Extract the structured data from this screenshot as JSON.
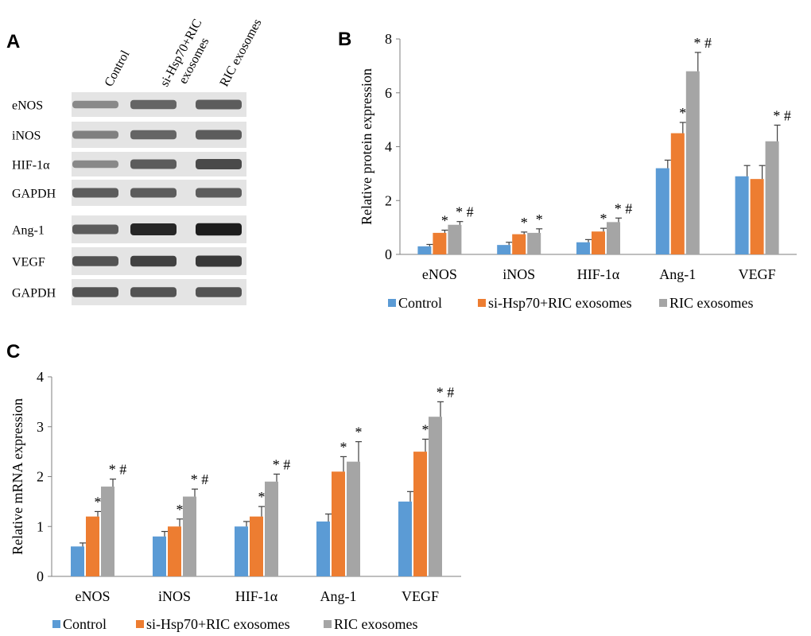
{
  "colors": {
    "control": "#5b9bd5",
    "si": "#ed7d31",
    "ric": "#a5a5a5",
    "axis": "#7f7f7f",
    "error": "#404040"
  },
  "panels": {
    "a": "A",
    "b": "B",
    "c": "C"
  },
  "blot": {
    "lanes": [
      "Control",
      "si-Hsp70+RIC\nexosomes",
      "RIC exosomes"
    ],
    "bands": [
      {
        "name": "eNOS",
        "intensity": [
          0.35,
          0.55,
          0.6
        ]
      },
      {
        "name": "iNOS",
        "intensity": [
          0.4,
          0.55,
          0.6
        ]
      },
      {
        "name": "HIF-1α",
        "intensity": [
          0.35,
          0.6,
          0.7
        ]
      },
      {
        "name": "GAPDH",
        "intensity": [
          0.6,
          0.6,
          0.6
        ]
      },
      {
        "name": "Ang-1",
        "intensity": [
          0.6,
          0.9,
          0.95
        ]
      },
      {
        "name": "VEGF",
        "intensity": [
          0.65,
          0.75,
          0.8
        ]
      },
      {
        "name": "GAPDH",
        "intensity": [
          0.65,
          0.65,
          0.65
        ]
      }
    ]
  },
  "chart_data": [
    {
      "type": "bar",
      "panel": "B",
      "ylabel": "Relative protein expression",
      "ylim": [
        0,
        8
      ],
      "yticks": [
        0,
        2,
        4,
        6,
        8
      ],
      "categories": [
        "eNOS",
        "iNOS",
        "HIF-1α",
        "Ang-1",
        "VEGF"
      ],
      "series": [
        {
          "name": "Control",
          "values": [
            0.3,
            0.35,
            0.45,
            3.2,
            2.9
          ],
          "errors": [
            0.07,
            0.1,
            0.1,
            0.3,
            0.4
          ],
          "labels": [
            "",
            "",
            "",
            "",
            ""
          ]
        },
        {
          "name": "si-Hsp70+RIC exosomes",
          "values": [
            0.8,
            0.75,
            0.85,
            4.5,
            2.8
          ],
          "errors": [
            0.1,
            0.08,
            0.12,
            0.4,
            0.5
          ],
          "labels": [
            "*",
            "*",
            "*",
            "*",
            ""
          ]
        },
        {
          "name": "RIC exosomes",
          "values": [
            1.1,
            0.8,
            1.2,
            6.8,
            4.2
          ],
          "errors": [
            0.12,
            0.15,
            0.15,
            0.7,
            0.6
          ],
          "labels": [
            "* #",
            "*",
            "* #",
            "* #",
            "* #"
          ]
        }
      ],
      "legend": "bottom"
    },
    {
      "type": "bar",
      "panel": "C",
      "ylabel": "Relative mRNA expression",
      "ylim": [
        0,
        4
      ],
      "yticks": [
        0,
        1,
        2,
        3,
        4
      ],
      "categories": [
        "eNOS",
        "iNOS",
        "HIF-1α",
        "Ang-1",
        "VEGF"
      ],
      "series": [
        {
          "name": "Control",
          "values": [
            0.6,
            0.8,
            1.0,
            1.1,
            1.5
          ],
          "errors": [
            0.07,
            0.1,
            0.1,
            0.15,
            0.2
          ],
          "labels": [
            "",
            "",
            "",
            "",
            ""
          ]
        },
        {
          "name": "si-Hsp70+RIC exosomes",
          "values": [
            1.2,
            1.0,
            1.2,
            2.1,
            2.5
          ],
          "errors": [
            0.1,
            0.15,
            0.2,
            0.3,
            0.25
          ],
          "labels": [
            "*",
            "*",
            "*",
            "*",
            "*"
          ]
        },
        {
          "name": "RIC exosomes",
          "values": [
            1.8,
            1.6,
            1.9,
            2.3,
            3.2
          ],
          "errors": [
            0.15,
            0.15,
            0.15,
            0.4,
            0.3
          ],
          "labels": [
            "* #",
            "* #",
            "* #",
            "*",
            "* #"
          ]
        }
      ],
      "legend": "bottom"
    }
  ]
}
